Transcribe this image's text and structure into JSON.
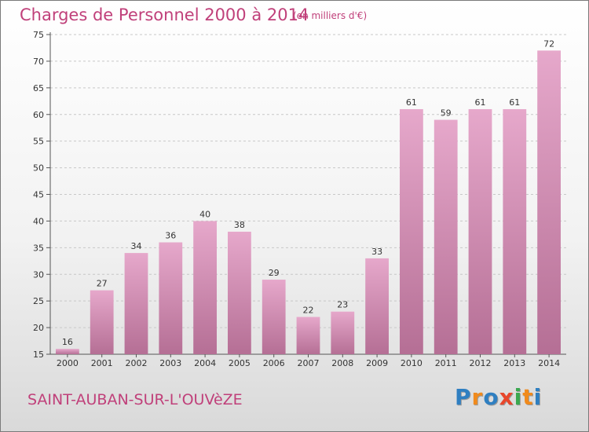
{
  "title": "Charges de Personnel 2000 à 2014",
  "subtitle": "(en milliers d'€)",
  "city": "SAINT-AUBAN-SUR-L'OUVèZE",
  "logo": {
    "letters": [
      "P",
      "r",
      "o",
      "x",
      "i",
      "t",
      "i"
    ],
    "colors": [
      "#2f7fc1",
      "#f08a1c",
      "#2f7fc1",
      "#e8462b",
      "#3aa84f",
      "#f08a1c",
      "#2f7fc1"
    ]
  },
  "chart_data": {
    "type": "bar",
    "categories": [
      "2000",
      "2001",
      "2002",
      "2003",
      "2004",
      "2005",
      "2006",
      "2007",
      "2008",
      "2009",
      "2010",
      "2011",
      "2012",
      "2013",
      "2014"
    ],
    "values": [
      16,
      27,
      34,
      36,
      40,
      38,
      29,
      22,
      23,
      33,
      61,
      59,
      61,
      61,
      72
    ],
    "ylim": [
      15,
      75
    ],
    "yticks": [
      15,
      20,
      25,
      30,
      35,
      40,
      45,
      50,
      55,
      60,
      65,
      70,
      75
    ],
    "grid": true,
    "bar_color_top": "#e6a8cb",
    "bar_color_bottom": "#b56f95"
  }
}
